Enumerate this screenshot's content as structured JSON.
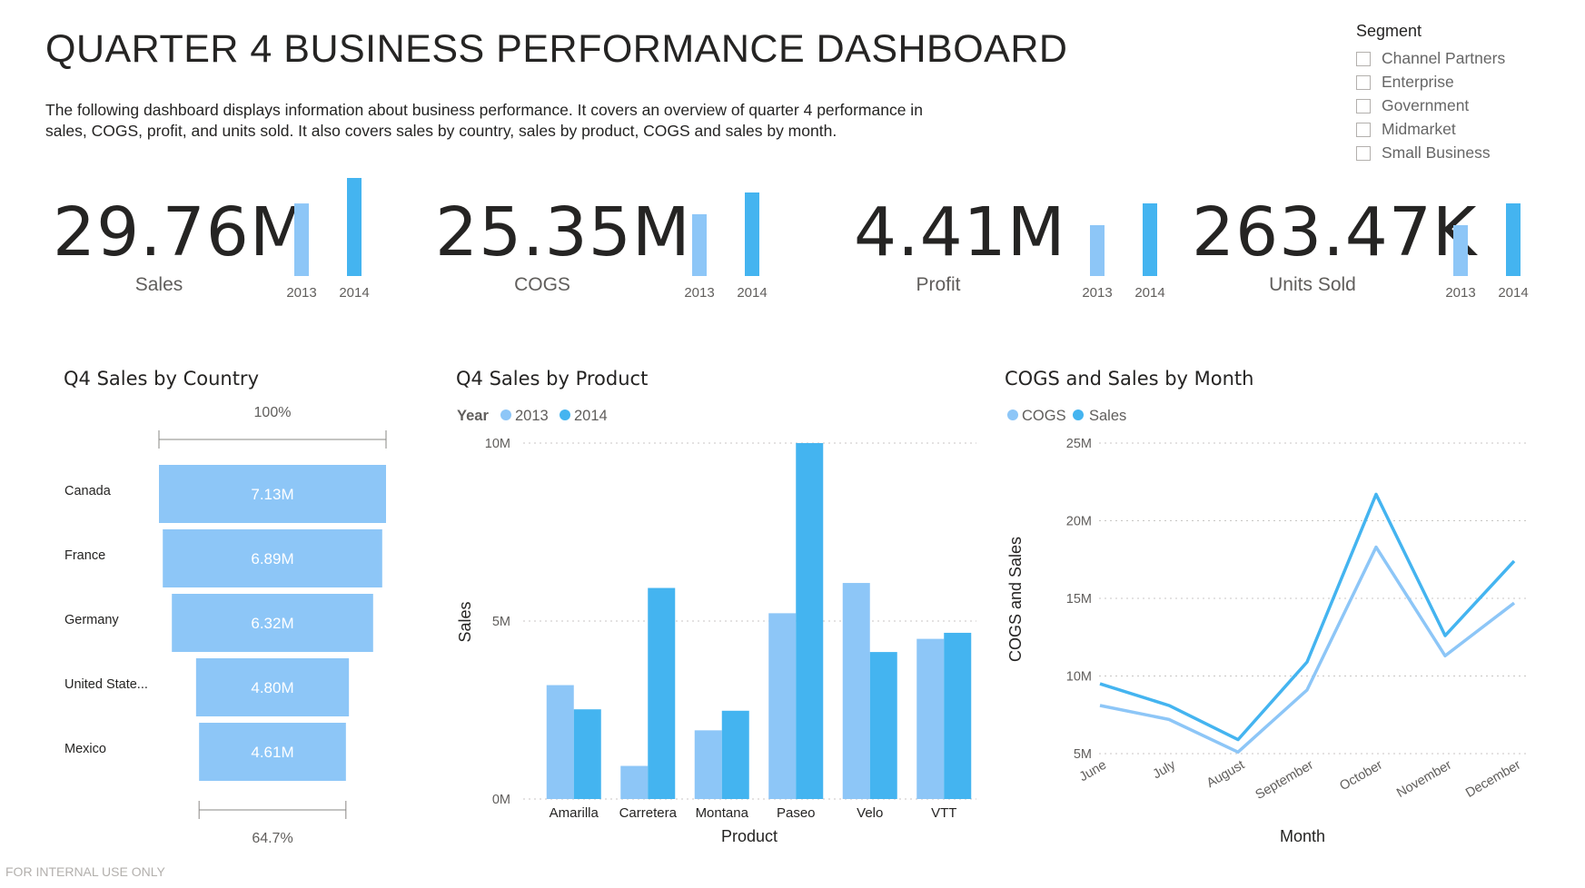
{
  "header": {
    "title": "QUARTER 4 BUSINESS PERFORMANCE DASHBOARD",
    "description": "The following dashboard displays information about business performance. It covers an overview of quarter 4 performance in sales, COGS, profit, and units sold. It also covers sales by country, sales by product, COGS and sales by month."
  },
  "segment_slicer": {
    "title": "Segment",
    "options": [
      "Channel Partners",
      "Enterprise",
      "Government",
      "Midmarket",
      "Small Business"
    ]
  },
  "colors": {
    "light_blue": "#8dc6f7",
    "dark_blue": "#44b4f0",
    "grid": "#c8c6c4",
    "axis_text": "#605e5c"
  },
  "kpis": [
    {
      "value": "29.76M",
      "label": "Sales",
      "bars": {
        "2013": 0.74,
        "2014": 1.0
      }
    },
    {
      "value": "25.35M",
      "label": "COGS",
      "bars": {
        "2013": 0.74,
        "2014": 1.0
      }
    },
    {
      "value": "4.41M",
      "label": "Profit",
      "bars": {
        "2013": 0.7,
        "2014": 1.0
      }
    },
    {
      "value": "263.47K",
      "label": "Units Sold",
      "bars": {
        "2013": 0.7,
        "2014": 1.0
      }
    }
  ],
  "kpi_year_labels": [
    "2013",
    "2014"
  ],
  "footer": "FOR INTERNAL USE ONLY",
  "chart_data": [
    {
      "type": "bar",
      "subtype": "funnel",
      "title": "Q4 Sales by Country",
      "categories": [
        "Canada",
        "France",
        "Germany",
        "United State...",
        "Mexico"
      ],
      "values": [
        7.13,
        6.89,
        6.32,
        4.8,
        4.61
      ],
      "value_labels": [
        "7.13M",
        "6.89M",
        "6.32M",
        "4.80M",
        "4.61M"
      ],
      "top_percent": "100%",
      "bottom_percent": "64.7%"
    },
    {
      "type": "bar",
      "title": "Q4 Sales by Product",
      "legend_title": "Year",
      "categories": [
        "Amarilla",
        "Carretera",
        "Montana",
        "Paseo",
        "Velo",
        "VTT"
      ],
      "series": [
        {
          "name": "2013",
          "values": [
            3.2,
            0.93,
            1.93,
            5.22,
            6.07,
            4.5
          ]
        },
        {
          "name": "2014",
          "values": [
            2.52,
            5.93,
            2.48,
            10.0,
            4.13,
            4.67
          ]
        }
      ],
      "xlabel": "Product",
      "ylabel": "Sales",
      "ylim": [
        0,
        10
      ],
      "yticks": [
        "0M",
        "5M",
        "10M"
      ],
      "legend": "top-left",
      "grid": true
    },
    {
      "type": "line",
      "title": "COGS and Sales by Month",
      "x": [
        "June",
        "July",
        "August",
        "September",
        "October",
        "November",
        "December"
      ],
      "series": [
        {
          "name": "COGS",
          "values": [
            8.1,
            7.2,
            5.1,
            9.1,
            18.3,
            11.3,
            14.7
          ]
        },
        {
          "name": "Sales",
          "values": [
            9.5,
            8.1,
            5.9,
            10.9,
            21.7,
            12.6,
            17.4
          ]
        }
      ],
      "xlabel": "Month",
      "ylabel": "COGS and Sales",
      "ylim": [
        5,
        25
      ],
      "yticks": [
        "5M",
        "10M",
        "15M",
        "20M",
        "25M"
      ],
      "legend": "top-left",
      "grid": true
    }
  ]
}
